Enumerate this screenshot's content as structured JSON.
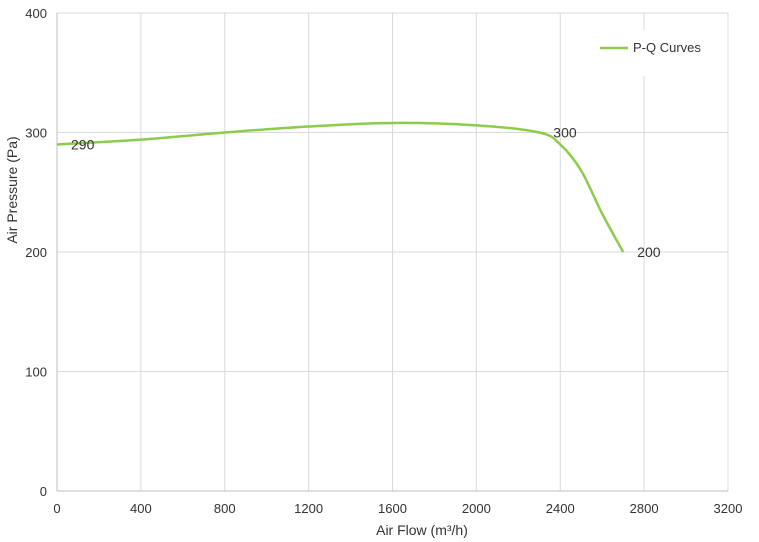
{
  "chart_data": {
    "type": "line",
    "xlabel": "Air Flow  (m³/h)",
    "ylabel": "Air Pressure  (Pa)",
    "xlim": [
      0,
      3200
    ],
    "ylim": [
      0,
      400
    ],
    "xticks": [
      0,
      400,
      800,
      1200,
      1600,
      2000,
      2400,
      2800,
      3200
    ],
    "yticks": [
      0,
      100,
      200,
      300,
      400
    ],
    "grid": true,
    "legend_position": "top-right",
    "series": [
      {
        "name": "P-Q Curves",
        "color": "#8dcb4b",
        "x": [
          0,
          400,
          800,
          1200,
          1600,
          2000,
          2300,
          2400,
          2500,
          2600,
          2700
        ],
        "y": [
          290,
          294,
          300,
          305,
          308,
          306,
          300,
          290,
          268,
          232,
          200
        ]
      }
    ],
    "data_labels": [
      {
        "x": 0,
        "y": 290,
        "text": "290"
      },
      {
        "x": 2300,
        "y": 300,
        "text": "300"
      },
      {
        "x": 2700,
        "y": 200,
        "text": "200"
      }
    ]
  }
}
